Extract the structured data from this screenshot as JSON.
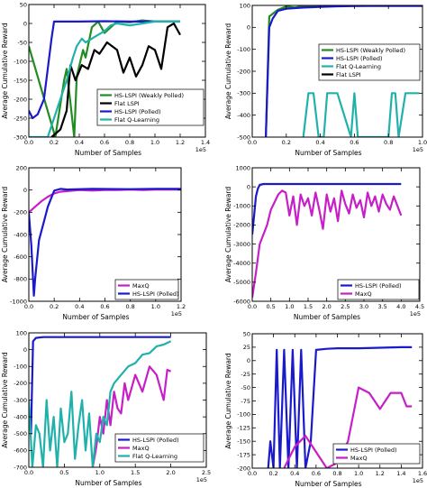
{
  "chart_data": [
    {
      "type": "line",
      "xlabel": "Number of Samples",
      "ylabel": "Average Cumulative Reward",
      "xscale_label": "1e5",
      "xlim": [
        0,
        1.4
      ],
      "ylim": [
        -300,
        50
      ],
      "xticks": [
        0.0,
        0.2,
        0.4,
        0.6,
        0.8,
        1.0,
        1.2,
        1.4
      ],
      "xtick_labels": [
        "0.0",
        "0.2",
        "0.4",
        "0.6",
        "0.8",
        "1.0",
        "1.2",
        "1.4"
      ],
      "yticks": [
        -300,
        -250,
        -200,
        -150,
        -100,
        -50,
        0,
        50
      ],
      "ytick_labels": [
        "-300",
        "-250",
        "-200",
        "-150",
        "-100",
        "-50",
        "0",
        "50"
      ],
      "legend": {
        "position": "bottom-right",
        "entries": [
          "HS-LSPI (Weakly Polled)",
          "Flat LSPI",
          "HS-LSPI (Polled)",
          "Flat Q-Learning"
        ]
      },
      "series": [
        {
          "name": "HS-LSPI (Weakly Polled)",
          "color": "#228b22",
          "x": [
            0.0,
            0.21,
            0.28,
            0.3,
            0.36,
            0.38,
            0.43,
            0.45,
            0.5,
            0.55,
            0.6,
            0.7,
            0.8,
            0.9,
            1.0,
            1.1,
            1.2
          ],
          "y": [
            -60,
            -300,
            -150,
            -120,
            -300,
            -140,
            -70,
            -90,
            -10,
            5,
            -25,
            5,
            3,
            8,
            5,
            5,
            5
          ]
        },
        {
          "name": "Flat LSPI",
          "color": "#000000",
          "x": [
            0.18,
            0.25,
            0.3,
            0.33,
            0.37,
            0.42,
            0.47,
            0.52,
            0.56,
            0.62,
            0.7,
            0.75,
            0.8,
            0.85,
            0.9,
            0.95,
            1.0,
            1.05,
            1.1,
            1.15,
            1.2
          ],
          "y": [
            -300,
            -280,
            -230,
            -110,
            -150,
            -110,
            -120,
            -70,
            -80,
            -50,
            -70,
            -130,
            -90,
            -140,
            -110,
            -60,
            -70,
            -120,
            -10,
            0,
            -30
          ]
        },
        {
          "name": "HS-LSPI (Polled)",
          "color": "#1a1acc",
          "x": [
            0.0,
            0.03,
            0.07,
            0.12,
            0.18,
            0.2,
            0.3,
            0.4,
            0.6,
            0.8,
            1.0,
            1.2
          ],
          "y": [
            -230,
            -250,
            -240,
            -200,
            -40,
            5,
            5,
            5,
            6,
            5,
            5,
            5
          ]
        },
        {
          "name": "Flat Q-Learning",
          "color": "#20b2aa",
          "x": [
            0.0,
            0.15,
            0.25,
            0.3,
            0.35,
            0.38,
            0.42,
            0.45,
            0.55,
            0.6,
            0.65,
            0.7,
            0.8,
            0.9,
            1.0,
            1.1,
            1.2
          ],
          "y": [
            -300,
            -300,
            -200,
            -150,
            -90,
            -60,
            -40,
            -50,
            -30,
            -20,
            -5,
            0,
            -5,
            0,
            5,
            5,
            5
          ]
        }
      ]
    },
    {
      "type": "line",
      "xlabel": "Number of Samples",
      "ylabel": "Average Cumulative Reward",
      "xscale_label": "1e5",
      "xlim": [
        0,
        1.0
      ],
      "ylim": [
        -500,
        100
      ],
      "xticks": [
        0.0,
        0.2,
        0.4,
        0.6,
        0.8,
        1.0
      ],
      "xtick_labels": [
        "0.0",
        "0.2",
        "0.4",
        "0.6",
        "0.8",
        "1.0"
      ],
      "yticks": [
        -500,
        -400,
        -300,
        -200,
        -100,
        0,
        100
      ],
      "ytick_labels": [
        "-500",
        "-400",
        "-300",
        "-200",
        "-100",
        "0",
        "100"
      ],
      "legend": {
        "position": "center-right",
        "entries": [
          "HS-LSPI (Weakly Polled)",
          "HS-LSPI (Polled)",
          "Flat Q-Learning",
          "Flat LSPI"
        ]
      },
      "series": [
        {
          "name": "HS-LSPI (Weakly Polled)",
          "color": "#228b22",
          "x": [
            0.08,
            0.1,
            0.15,
            0.2,
            0.25,
            0.3,
            0.4,
            0.5,
            0.6,
            0.8,
            1.0
          ],
          "y": [
            -500,
            50,
            80,
            95,
            90,
            98,
            95,
            97,
            98,
            98,
            98
          ]
        },
        {
          "name": "HS-LSPI (Polled)",
          "color": "#1a1acc",
          "x": [
            0.08,
            0.1,
            0.12,
            0.15,
            0.2,
            0.3,
            0.4,
            0.5,
            0.6,
            0.7,
            0.8,
            0.9,
            1.0
          ],
          "y": [
            -500,
            0,
            40,
            75,
            85,
            90,
            93,
            96,
            97,
            98,
            98,
            98,
            98
          ]
        },
        {
          "name": "Flat Q-Learning",
          "color": "#20b2aa",
          "x": [
            0.3,
            0.33,
            0.36,
            0.39,
            0.42,
            0.44,
            0.46,
            0.5,
            0.58,
            0.6,
            0.62,
            0.65,
            0.68,
            0.72,
            0.75,
            0.8,
            0.82,
            0.84,
            0.86,
            0.9,
            0.94,
            0.98
          ],
          "y": [
            -500,
            -300,
            -300,
            -500,
            -500,
            -300,
            -300,
            -300,
            -500,
            -300,
            -500,
            -500,
            -500,
            -500,
            -500,
            -500,
            -300,
            -300,
            -500,
            -300,
            -300,
            -300
          ]
        },
        {
          "name": "Flat LSPI",
          "color": "#000000",
          "x": [],
          "y": []
        }
      ]
    },
    {
      "type": "line",
      "xlabel": "Number of Samples",
      "ylabel": "Average Cumulative Reward",
      "xscale_label": "1e5",
      "xlim": [
        0,
        1.2
      ],
      "ylim": [
        -1000,
        200
      ],
      "xticks": [
        0.0,
        0.2,
        0.4,
        0.6,
        0.8,
        1.0,
        1.2
      ],
      "xtick_labels": [
        "0.0",
        "0.2",
        "0.4",
        "0.6",
        "0.8",
        "1.0",
        "1.2"
      ],
      "yticks": [
        -1000,
        -800,
        -600,
        -400,
        -200,
        0,
        200
      ],
      "ytick_labels": [
        "-1000",
        "-800",
        "-600",
        "-400",
        "-200",
        "0",
        "200"
      ],
      "legend": {
        "position": "bottom-right",
        "entries": [
          "MaxQ",
          "HS-LSPI (Polled)"
        ]
      },
      "series": [
        {
          "name": "MaxQ",
          "color": "#c71fc7",
          "x": [
            0.0,
            0.05,
            0.1,
            0.15,
            0.2,
            0.25,
            0.3,
            0.4,
            0.5,
            0.6,
            0.7,
            0.8,
            0.9,
            1.0,
            1.1,
            1.2
          ],
          "y": [
            -200,
            -150,
            -100,
            -60,
            -30,
            -15,
            -10,
            0,
            -5,
            0,
            0,
            5,
            0,
            5,
            5,
            5
          ]
        },
        {
          "name": "HS-LSPI (Polled)",
          "color": "#1a1acc",
          "x": [
            0.0,
            0.02,
            0.04,
            0.05,
            0.08,
            0.12,
            0.15,
            0.2,
            0.25,
            0.3,
            0.5,
            0.8,
            1.0,
            1.2
          ],
          "y": [
            -200,
            -500,
            -950,
            -800,
            -450,
            -280,
            -150,
            -5,
            10,
            5,
            10,
            8,
            10,
            10
          ]
        }
      ]
    },
    {
      "type": "line",
      "xlabel": "Number of Samples",
      "ylabel": "Average Cumulative Reward",
      "xscale_label": "1e5",
      "xlim": [
        0,
        4.5
      ],
      "ylim": [
        -6000,
        1000
      ],
      "xticks": [
        0.0,
        0.5,
        1.0,
        1.5,
        2.0,
        2.5,
        3.0,
        3.5,
        4.0,
        4.5
      ],
      "xtick_labels": [
        "0.0",
        "0.5",
        "1.0",
        "1.5",
        "2.0",
        "2.5",
        "3.0",
        "3.5",
        "4.0",
        "4.5"
      ],
      "yticks": [
        -6000,
        -5000,
        -4000,
        -3000,
        -2000,
        -1000,
        0,
        1000
      ],
      "ytick_labels": [
        "-6000",
        "-5000",
        "-4000",
        "-3000",
        "-2000",
        "-1000",
        "0",
        "1000"
      ],
      "legend": {
        "position": "bottom-right",
        "entries": [
          "HS-LSPI (Polled)",
          "MaxQ"
        ]
      },
      "series": [
        {
          "name": "HS-LSPI (Polled)",
          "color": "#1a1acc",
          "x": [
            0.0,
            0.05,
            0.1,
            0.15,
            0.2,
            0.3,
            0.5,
            1.0,
            2.0,
            3.0,
            4.0
          ],
          "y": [
            -2500,
            -1500,
            -500,
            -100,
            100,
            150,
            150,
            150,
            150,
            150,
            150
          ]
        },
        {
          "name": "MaxQ",
          "color": "#c71fc7",
          "x": [
            0.0,
            0.1,
            0.2,
            0.3,
            0.4,
            0.5,
            0.6,
            0.7,
            0.8,
            0.9,
            1.0,
            1.1,
            1.2,
            1.3,
            1.4,
            1.5,
            1.6,
            1.7,
            1.8,
            1.9,
            2.0,
            2.1,
            2.2,
            2.3,
            2.4,
            2.5,
            2.6,
            2.7,
            2.8,
            2.9,
            3.0,
            3.1,
            3.2,
            3.3,
            3.4,
            3.5,
            3.6,
            3.7,
            3.8,
            3.9,
            4.0
          ],
          "y": [
            -5800,
            -4500,
            -3000,
            -2500,
            -2000,
            -1200,
            -800,
            -400,
            -200,
            -300,
            -1500,
            -500,
            -2000,
            -400,
            -1000,
            -600,
            -1500,
            -300,
            -1200,
            -2200,
            -400,
            -1300,
            -600,
            -1800,
            -200,
            -900,
            -1400,
            -400,
            -1100,
            -700,
            -1600,
            -300,
            -1000,
            -500,
            -1300,
            -400,
            -900,
            -1200,
            -500,
            -1000,
            -1500
          ]
        }
      ]
    },
    {
      "type": "line",
      "xlabel": "Number of Samples",
      "ylabel": "Average Cumulative Reward",
      "xscale_label": "1e5",
      "xlim": [
        0,
        2.5
      ],
      "ylim": [
        -700,
        100
      ],
      "xticks": [
        0.0,
        0.5,
        1.0,
        1.5,
        2.0,
        2.5
      ],
      "xtick_labels": [
        "0.0",
        "0.5",
        "1.0",
        "1.5",
        "2.0",
        "2.5"
      ],
      "yticks": [
        -700,
        -600,
        -500,
        -400,
        -300,
        -200,
        -100,
        0,
        100
      ],
      "ytick_labels": [
        "-700",
        "-600",
        "-500",
        "-400",
        "-300",
        "-200",
        "-100",
        "0",
        "100"
      ],
      "legend": {
        "position": "bottom-right",
        "entries": [
          "HS-LSPI (Polled)",
          "MaxQ",
          "Flat Q-Learning"
        ]
      },
      "series": [
        {
          "name": "HS-LSPI (Polled)",
          "color": "#1a1acc",
          "x": [
            0.0,
            0.03,
            0.06,
            0.1,
            0.2,
            0.5,
            1.0,
            1.5,
            2.0
          ],
          "y": [
            -400,
            -500,
            50,
            70,
            75,
            75,
            75,
            75,
            75
          ]
        },
        {
          "name": "MaxQ",
          "color": "#c71fc7",
          "x": [
            0.9,
            0.95,
            1.0,
            1.05,
            1.1,
            1.15,
            1.2,
            1.25,
            1.3,
            1.35,
            1.4,
            1.5,
            1.6,
            1.7,
            1.8,
            1.9,
            1.95,
            2.0
          ],
          "y": [
            -700,
            -580,
            -400,
            -500,
            -300,
            -450,
            -250,
            -350,
            -380,
            -200,
            -300,
            -150,
            -250,
            -100,
            -150,
            -300,
            -120,
            -130
          ]
        },
        {
          "name": "Flat Q-Learning",
          "color": "#20b2aa",
          "x": [
            0.0,
            0.05,
            0.1,
            0.15,
            0.2,
            0.25,
            0.3,
            0.35,
            0.4,
            0.45,
            0.5,
            0.55,
            0.6,
            0.65,
            0.7,
            0.75,
            0.8,
            0.85,
            0.9,
            0.95,
            1.0,
            1.05,
            1.1,
            1.15,
            1.2,
            1.3,
            1.4,
            1.5,
            1.6,
            1.7,
            1.8,
            1.9,
            2.0
          ],
          "y": [
            -300,
            -700,
            -450,
            -500,
            -700,
            -300,
            -600,
            -400,
            -700,
            -350,
            -550,
            -500,
            -250,
            -650,
            -450,
            -300,
            -600,
            -380,
            -700,
            -500,
            -550,
            -400,
            -450,
            -250,
            -200,
            -150,
            -100,
            -80,
            -30,
            -20,
            20,
            30,
            50
          ]
        }
      ]
    },
    {
      "type": "line",
      "xlabel": "Number of Samples",
      "ylabel": "Average Cumulative Reward",
      "xscale_label": "1e5",
      "xlim": [
        0,
        1.6
      ],
      "ylim": [
        -200,
        50
      ],
      "xticks": [
        0.0,
        0.2,
        0.4,
        0.6,
        0.8,
        1.0,
        1.2,
        1.4,
        1.6
      ],
      "xtick_labels": [
        "0.0",
        "0.2",
        "0.4",
        "0.6",
        "0.8",
        "1.0",
        "1.2",
        "1.4",
        "1.6"
      ],
      "yticks": [
        -200,
        -175,
        -150,
        -125,
        -100,
        -75,
        -50,
        -25,
        0,
        25,
        50
      ],
      "ytick_labels": [
        "-200",
        "-175",
        "-150",
        "-125",
        "-100",
        "-75",
        "-50",
        "-25",
        "0",
        "25",
        "50"
      ],
      "legend": {
        "position": "bottom-right",
        "entries": [
          "HS-LSPI (Polled)",
          "MaxQ"
        ]
      },
      "series": [
        {
          "name": "HS-LSPI (Polled)",
          "color": "#1a1acc",
          "x": [
            0.15,
            0.17,
            0.2,
            0.23,
            0.26,
            0.3,
            0.34,
            0.38,
            0.42,
            0.46,
            0.5,
            0.55,
            0.6,
            0.7,
            0.8,
            1.0,
            1.2,
            1.4,
            1.5
          ],
          "y": [
            -200,
            -150,
            -200,
            20,
            -200,
            20,
            -200,
            20,
            -200,
            20,
            -200,
            -150,
            20,
            22,
            23,
            23,
            24,
            25,
            25
          ]
        },
        {
          "name": "MaxQ",
          "color": "#c71fc7",
          "x": [
            0.3,
            0.35,
            0.4,
            0.5,
            0.6,
            0.7,
            0.8,
            0.9,
            1.0,
            1.1,
            1.2,
            1.3,
            1.4,
            1.45,
            1.5
          ],
          "y": [
            -200,
            -180,
            -160,
            -140,
            -170,
            -200,
            -190,
            -150,
            -50,
            -60,
            -90,
            -60,
            -60,
            -85,
            -85
          ]
        }
      ]
    }
  ]
}
